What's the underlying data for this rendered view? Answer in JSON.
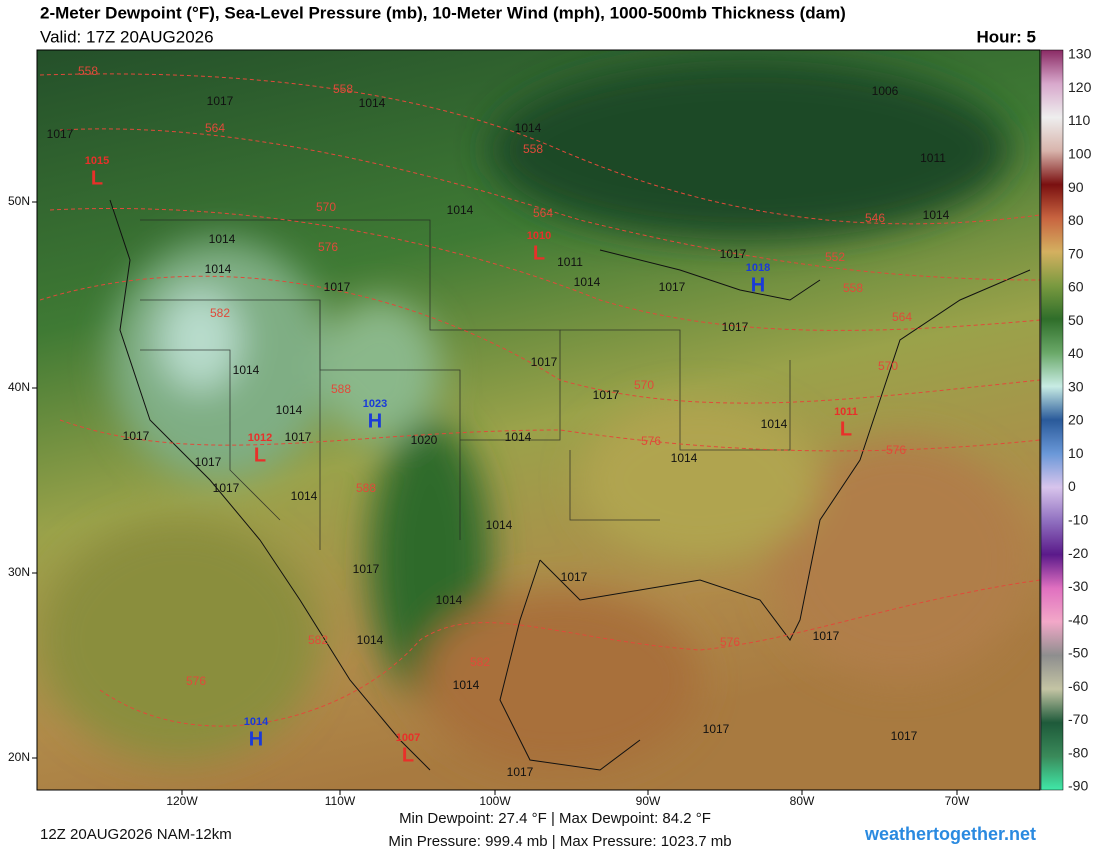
{
  "header": {
    "title": "2-Meter Dewpoint (°F), Sea-Level Pressure (mb), 10-Meter Wind (mph), 1000-500mb Thickness (dam)",
    "valid": "Valid: 17Z 20AUG2026",
    "hour": "Hour: 5"
  },
  "colorbar": {
    "labels": [
      130,
      120,
      110,
      100,
      90,
      80,
      70,
      60,
      50,
      40,
      30,
      20,
      10,
      0,
      -10,
      -20,
      -30,
      -40,
      -50,
      -60,
      -70,
      -80,
      -90
    ],
    "colors": [
      "#8a2a64",
      "#d8a8cc",
      "#eeeeee",
      "#d8b4ac",
      "#7a1010",
      "#c86440",
      "#d4b060",
      "#7a9a40",
      "#2f6e2a",
      "#6aa868",
      "#c8ece4",
      "#2a5a9a",
      "#6a98d8",
      "#d8c4ec",
      "#9070c0",
      "#5a1a8a",
      "#e070c0",
      "#f2a8c8",
      "#8e8e8e",
      "#c4c4a4",
      "#1e5a3a",
      "#3a8a5a",
      "#40e8a8"
    ]
  },
  "axes": {
    "lat": [
      "50N",
      "40N",
      "30N",
      "20N"
    ],
    "lon": [
      "120W",
      "110W",
      "100W",
      "90W",
      "80W",
      "70W"
    ]
  },
  "isobar_labels": [
    1017,
    1014,
    1017,
    1014,
    1006,
    1011,
    1014,
    1014,
    1014,
    1014,
    1011,
    1014,
    1017,
    1017,
    1017,
    1017,
    1017,
    1014,
    1014,
    1017,
    1020,
    1014,
    1014,
    1014,
    1017,
    1017,
    1017,
    1014,
    1014,
    1017,
    1014,
    1017,
    1014,
    1014,
    1017,
    1017,
    1017,
    1017,
    1017
  ],
  "thickness_labels": [
    558,
    558,
    564,
    558,
    570,
    564,
    576,
    546,
    552,
    558,
    564,
    582,
    570,
    570,
    588,
    576,
    576,
    588,
    582,
    582,
    576,
    576
  ],
  "centers": [
    {
      "letter": "L",
      "pressure": 1015
    },
    {
      "letter": "L",
      "pressure": 1010
    },
    {
      "letter": "H",
      "pressure": 1018
    },
    {
      "letter": "H",
      "pressure": 1023
    },
    {
      "letter": "L",
      "pressure": 1012
    },
    {
      "letter": "L",
      "pressure": 1011
    },
    {
      "letter": "H",
      "pressure": 1014
    },
    {
      "letter": "L",
      "pressure": 1007
    }
  ],
  "footer": {
    "run": "12Z 20AUG2026 NAM-12km",
    "dewpoint_stats": "Min Dewpoint:  27.4 °F | Max Dewpoint:  84.2 °F",
    "pressure_stats": "Min Pressure: 999.4 mb | Max Pressure: 1023.7 mb",
    "site": "weathertogether.net"
  }
}
